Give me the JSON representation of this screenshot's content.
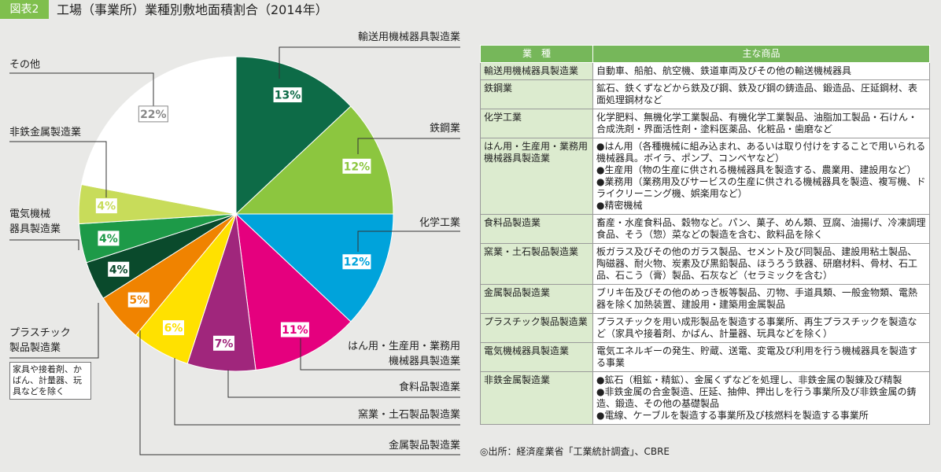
{
  "header": {
    "badge": "図表2",
    "title": "工場（事業所）業種別敷地面積割合（2014年）"
  },
  "chart_data": {
    "type": "pie",
    "categories": [
      "輸送用機械器具製造業",
      "鉄鋼業",
      "化学工業",
      "はん用・生産用・業務用\n機械器具製造業",
      "食料品製造業",
      "窯業・土石製品製造業",
      "金属製品製造業",
      "プラスチック\n製品製造業",
      "電気機械\n器具製造業",
      "非鉄金属製造業",
      "その他"
    ],
    "values": [
      13,
      12,
      12,
      11,
      7,
      6,
      5,
      4,
      4,
      4,
      22
    ],
    "value_labels": [
      "13%",
      "12%",
      "12%",
      "11%",
      "7%",
      "6%",
      "5%",
      "4%",
      "4%",
      "4%",
      "22%"
    ],
    "colors": [
      "#0d6b47",
      "#8cc63f",
      "#00a3db",
      "#e5007e",
      "#a0267c",
      "#ffe100",
      "#f08300",
      "#0a4a2c",
      "#1d9a48",
      "#c8dc5a",
      "#ffffff"
    ],
    "note": "家具や接着剤、かばん、計量器、玩具などを除く"
  },
  "table": {
    "header": [
      "業　種",
      "主な商品"
    ],
    "rows": [
      [
        "輸送用機械器具製造業",
        "自動車、船舶、航空機、鉄道車両及びその他の輸送機械器具"
      ],
      [
        "鉄鋼業",
        "鉱石、鉄くずなどから鉄及び鋼、鉄及び鋼の鋳造品、鍛造品、圧延鋼材、表面処理鋼材など"
      ],
      [
        "化学工業",
        "化学肥料、無機化学工業製品、有機化学工業製品、油脂加工製品・石けん・合成洗剤・界面活性剤・塗料医薬品、化粧品・歯磨など"
      ],
      [
        "はん用・生産用・業務用機械器具製造業",
        "●はん用（各種機械に組み込まれ、あるいは取り付けをすることで用いられる機械器具。ボイラ、ポンプ、コンベヤなど）\n●生産用（物の生産に供される機械器具を製造する、農業用、建設用など）\n●業務用（業務用及びサービスの生産に供される機械器具を製造、複写機、ドライクリーニング機、娯楽用など）\n●精密機械"
      ],
      [
        "食料品製造業",
        "畜産・水産食料品、穀物など。パン、菓子、めん類、豆腐、油揚げ、冷凍調理食品、そう（惣）菜などの製造を含む、飲料品を除く"
      ],
      [
        "窯業・土石製品製造業",
        "板ガラス及びその他のガラス製品、セメント及び同製品、建設用粘土製品、陶磁器、耐火物、炭素及び黒鉛製品、ほうろう鉄器、研磨材料、骨材、石工品、石こう（膏）製品、石灰など（セラミックを含む）"
      ],
      [
        "金属製品製造業",
        "ブリキ缶及びその他のめっき板等製品、刃物、手道具類、一般金物類、電熱器を除く加熱装置、建設用・建築用金属製品"
      ],
      [
        "プラスチック製品製造業",
        "プラスチックを用い成形製品を製造する事業所、再生プラスチックを製造など（家具や接着剤、かばん、計量器、玩具などを除く）"
      ],
      [
        "電気機械器具製造業",
        "電気エネルギーの発生、貯蔵、送電、変電及び利用を行う機械器具を製造する事業"
      ],
      [
        "非鉄金属製造業",
        "●鉱石（粗鉱・精鉱）、金属くずなどを処理し、非鉄金属の製錬及び精製\n●非鉄金属の合金製造、圧延、抽伸、押出しを行う事業所及び非鉄金属の鋳造、鍛造、その他の基礎製品\n●電線、ケーブルを製造する事業所及び核燃料を製造する事業所"
      ]
    ]
  },
  "source": "◎出所：経済産業省「工業統計調査」、CBRE"
}
